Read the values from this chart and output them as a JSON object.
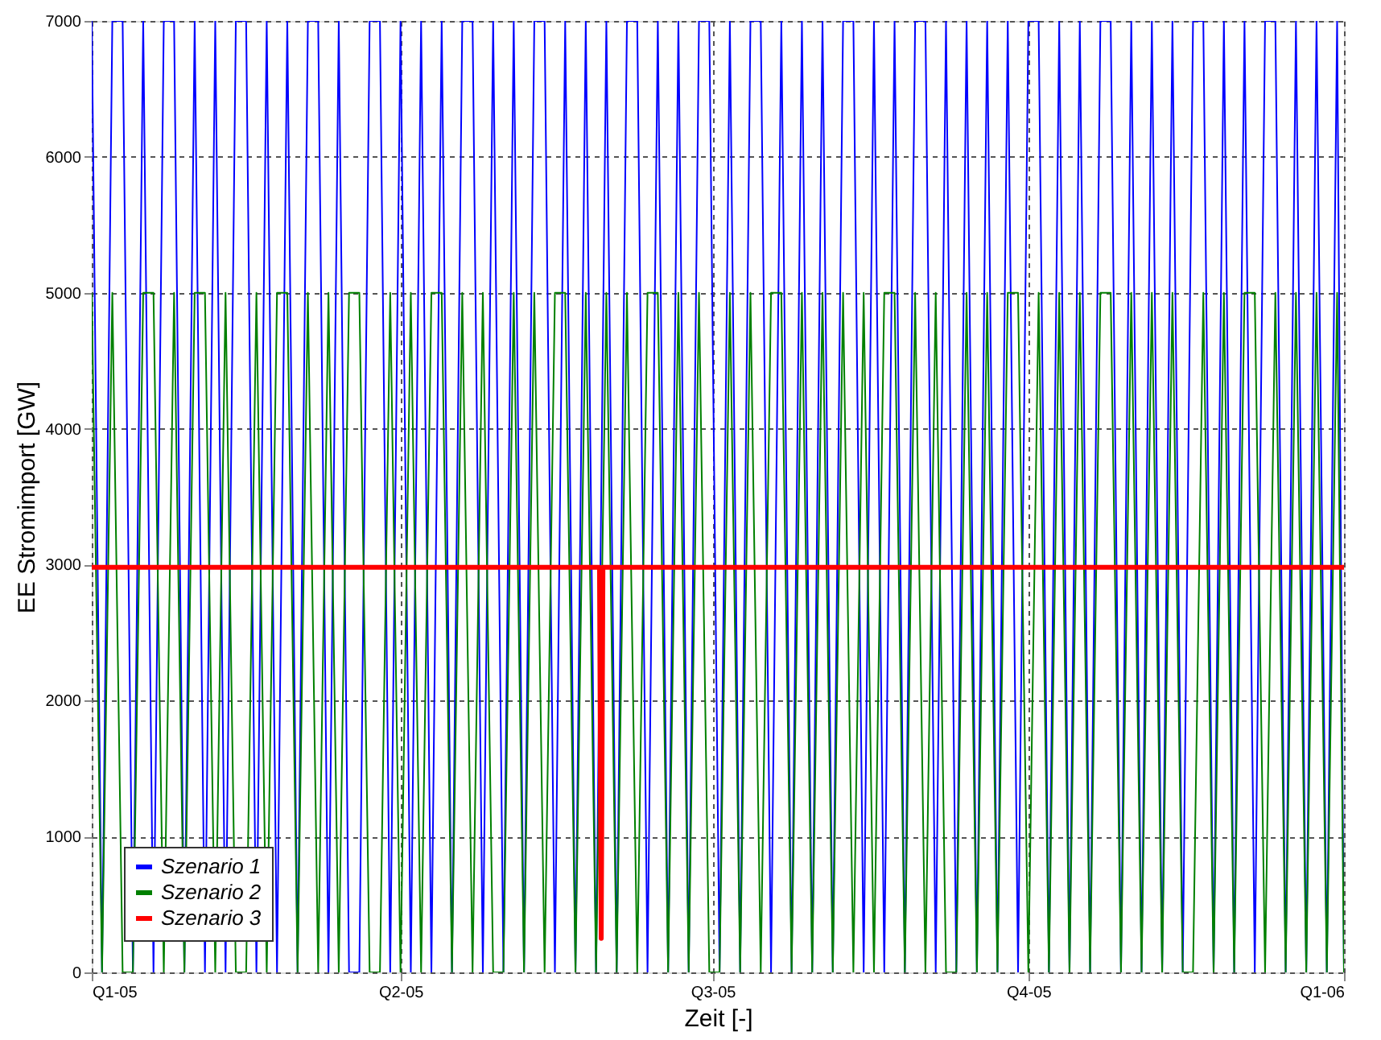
{
  "chart_data": {
    "type": "line",
    "xlabel": "Zeit [-]",
    "ylabel": "EE Stromimport [GW]",
    "xlim": [
      "2005-01-01",
      "2006-01-01"
    ],
    "xticks": [
      {
        "value": "2005-01-01",
        "label": "Q1-05"
      },
      {
        "value": "2005-04-01",
        "label": "Q2-05"
      },
      {
        "value": "2005-07-01",
        "label": "Q3-05"
      },
      {
        "value": "2005-10-01",
        "label": "Q4-05"
      },
      {
        "value": "2006-01-01",
        "label": "Q1-06"
      }
    ],
    "ylim": [
      0,
      7000
    ],
    "yticks": [
      0,
      1000,
      2000,
      3000,
      4000,
      5000,
      6000,
      7000
    ],
    "grid": true,
    "legend": "bottom left",
    "marker": "none",
    "line_style": "solid",
    "x": [
      "2005-01-01",
      "2005-01-04",
      "2005-01-07",
      "2005-01-10",
      "2005-01-13",
      "2005-01-16",
      "2005-01-19",
      "2005-01-22",
      "2005-01-25",
      "2005-01-28",
      "2005-01-31",
      "2005-02-03",
      "2005-02-06",
      "2005-02-09",
      "2005-02-12",
      "2005-02-15",
      "2005-02-18",
      "2005-02-21",
      "2005-02-24",
      "2005-02-27",
      "2005-03-02",
      "2005-03-05",
      "2005-03-08",
      "2005-03-11",
      "2005-03-14",
      "2005-03-17",
      "2005-03-20",
      "2005-03-23",
      "2005-03-26",
      "2005-03-29",
      "2005-04-01",
      "2005-04-04",
      "2005-04-07",
      "2005-04-10",
      "2005-04-13",
      "2005-04-16",
      "2005-04-19",
      "2005-04-22",
      "2005-04-25",
      "2005-04-28",
      "2005-05-01",
      "2005-05-04",
      "2005-05-07",
      "2005-05-10",
      "2005-05-13",
      "2005-05-16",
      "2005-05-19",
      "2005-05-22",
      "2005-05-25",
      "2005-05-28",
      "2005-05-31",
      "2005-06-03",
      "2005-06-06",
      "2005-06-09",
      "2005-06-12",
      "2005-06-15",
      "2005-06-18",
      "2005-06-21",
      "2005-06-24",
      "2005-06-27",
      "2005-06-30",
      "2005-07-03",
      "2005-07-06",
      "2005-07-09",
      "2005-07-12",
      "2005-07-15",
      "2005-07-18",
      "2005-07-21",
      "2005-07-24",
      "2005-07-27",
      "2005-07-30",
      "2005-08-02",
      "2005-08-05",
      "2005-08-08",
      "2005-08-11",
      "2005-08-14",
      "2005-08-17",
      "2005-08-20",
      "2005-08-23",
      "2005-08-26",
      "2005-08-29",
      "2005-09-01",
      "2005-09-04",
      "2005-09-07",
      "2005-09-10",
      "2005-09-13",
      "2005-09-16",
      "2005-09-19",
      "2005-09-22",
      "2005-09-25",
      "2005-09-28",
      "2005-10-01",
      "2005-10-04",
      "2005-10-07",
      "2005-10-10",
      "2005-10-13",
      "2005-10-16",
      "2005-10-19",
      "2005-10-22",
      "2005-10-25",
      "2005-10-28",
      "2005-10-31",
      "2005-11-03",
      "2005-11-06",
      "2005-11-09",
      "2005-11-12",
      "2005-11-15",
      "2005-11-18",
      "2005-11-21",
      "2005-11-24",
      "2005-11-27",
      "2005-11-30",
      "2005-12-03",
      "2005-12-06",
      "2005-12-09",
      "2005-12-12",
      "2005-12-15",
      "2005-12-18",
      "2005-12-21",
      "2005-12-24",
      "2005-12-27",
      "2005-12-30",
      "2006-01-01"
    ],
    "series": [
      {
        "name": "Szenario 1",
        "color": "#0000ff",
        "values": [
          7000,
          0,
          7000,
          7000,
          0,
          7000,
          0,
          7000,
          7000,
          0,
          7000,
          0,
          7000,
          0,
          7000,
          7000,
          0,
          7000,
          0,
          7000,
          0,
          7000,
          7000,
          0,
          7000,
          0,
          0,
          7000,
          7000,
          0,
          7000,
          0,
          7000,
          0,
          7000,
          0,
          7000,
          7000,
          0,
          7000,
          0,
          7000,
          0,
          7000,
          7000,
          0,
          7000,
          0,
          7000,
          0,
          7000,
          0,
          7000,
          7000,
          0,
          7000,
          0,
          7000,
          0,
          7000,
          7000,
          0,
          7000,
          0,
          7000,
          7000,
          0,
          7000,
          0,
          7000,
          0,
          7000,
          0,
          7000,
          7000,
          0,
          7000,
          0,
          7000,
          0,
          7000,
          7000,
          0,
          7000,
          0,
          7000,
          0,
          7000,
          0,
          7000,
          0,
          7000,
          7000,
          0,
          7000,
          0,
          7000,
          0,
          7000,
          7000,
          0,
          7000,
          0,
          7000,
          0,
          7000,
          0,
          7000,
          7000,
          0,
          7000,
          0,
          7000,
          0,
          7000,
          7000,
          0,
          7000,
          0,
          7000,
          0,
          7000,
          0
        ]
      },
      {
        "name": "Szenario 2",
        "color": "#008000",
        "values": [
          5000,
          0,
          5000,
          0,
          0,
          5000,
          5000,
          0,
          5000,
          0,
          5000,
          5000,
          0,
          5000,
          0,
          0,
          5000,
          0,
          5000,
          5000,
          0,
          5000,
          0,
          5000,
          0,
          5000,
          5000,
          0,
          0,
          5000,
          0,
          5000,
          0,
          5000,
          5000,
          0,
          5000,
          0,
          5000,
          0,
          0,
          5000,
          0,
          5000,
          0,
          5000,
          5000,
          0,
          5000,
          0,
          5000,
          0,
          5000,
          0,
          5000,
          5000,
          0,
          5000,
          0,
          5000,
          0,
          0,
          5000,
          0,
          5000,
          0,
          5000,
          5000,
          0,
          5000,
          0,
          5000,
          0,
          5000,
          0,
          5000,
          0,
          5000,
          5000,
          0,
          5000,
          0,
          5000,
          0,
          0,
          5000,
          0,
          5000,
          0,
          5000,
          5000,
          0,
          5000,
          0,
          5000,
          0,
          5000,
          0,
          5000,
          5000,
          0,
          5000,
          0,
          5000,
          0,
          5000,
          0,
          0,
          5000,
          0,
          5000,
          0,
          5000,
          5000,
          0,
          5000,
          0,
          5000,
          0,
          5000,
          0,
          5000,
          0
        ]
      },
      {
        "name": "Szenario 3",
        "color": "#ff0000",
        "x": [
          "2005-01-01",
          "2005-05-29",
          "2005-05-29T12:00",
          "2005-05-30",
          "2006-01-01"
        ],
        "values": [
          2980,
          2980,
          250,
          2980,
          2980
        ]
      }
    ]
  }
}
